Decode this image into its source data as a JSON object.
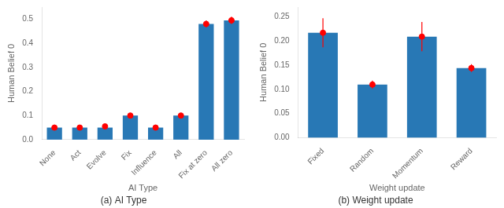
{
  "chart_data": [
    {
      "type": "bar",
      "subtitle": "(a) AI Type",
      "xlabel": "AI Type",
      "ylabel": "Human Belief 0",
      "categories": [
        "None",
        "Act",
        "Evolve",
        "Fix",
        "Influence",
        "All",
        "Fix at zero",
        "All zero"
      ],
      "series": [
        {
          "type": "bar",
          "color": "#2878b5",
          "values": [
            0.05,
            0.05,
            0.05,
            0.1,
            0.05,
            0.1,
            0.48,
            0.495
          ]
        },
        {
          "type": "scatter",
          "color": "red",
          "marker": "circle",
          "values": [
            0.05,
            0.05,
            0.055,
            0.1,
            0.05,
            0.1,
            0.48,
            0.495
          ],
          "errors": [
            0.0,
            0.0,
            0.005,
            0.005,
            0.005,
            0.005,
            0.015,
            0.015
          ]
        }
      ],
      "ylim": [
        0,
        0.55
      ],
      "yticks": [
        {
          "value": 0.0,
          "label": "0.0"
        },
        0.1,
        0.2,
        0.3,
        0.4,
        0.5
      ],
      "grid": false
    },
    {
      "type": "bar",
      "subtitle": "(b) Weight update",
      "xlabel": "Weight update",
      "ylabel": "Human Belief 0",
      "categories": [
        "Fixed",
        "Random",
        "Momentum",
        "Reward"
      ],
      "series": [
        {
          "type": "bar",
          "color": "#2878b5",
          "values": [
            0.217,
            0.11,
            0.209,
            0.144
          ]
        },
        {
          "type": "scatter",
          "color": "red",
          "marker": "circle",
          "values": [
            0.217,
            0.11,
            0.209,
            0.144
          ],
          "errors": [
            0.03,
            0.008,
            0.03,
            0.008
          ]
        }
      ],
      "ylim": [
        0,
        0.27
      ],
      "yticks": [
        {
          "value": 0.0,
          "label": "0.00"
        },
        0.05,
        {
          "value": 0.1,
          "label": "0.10"
        },
        0.15,
        {
          "value": 0.2,
          "label": "0.20"
        },
        0.25
      ],
      "grid": false
    }
  ]
}
